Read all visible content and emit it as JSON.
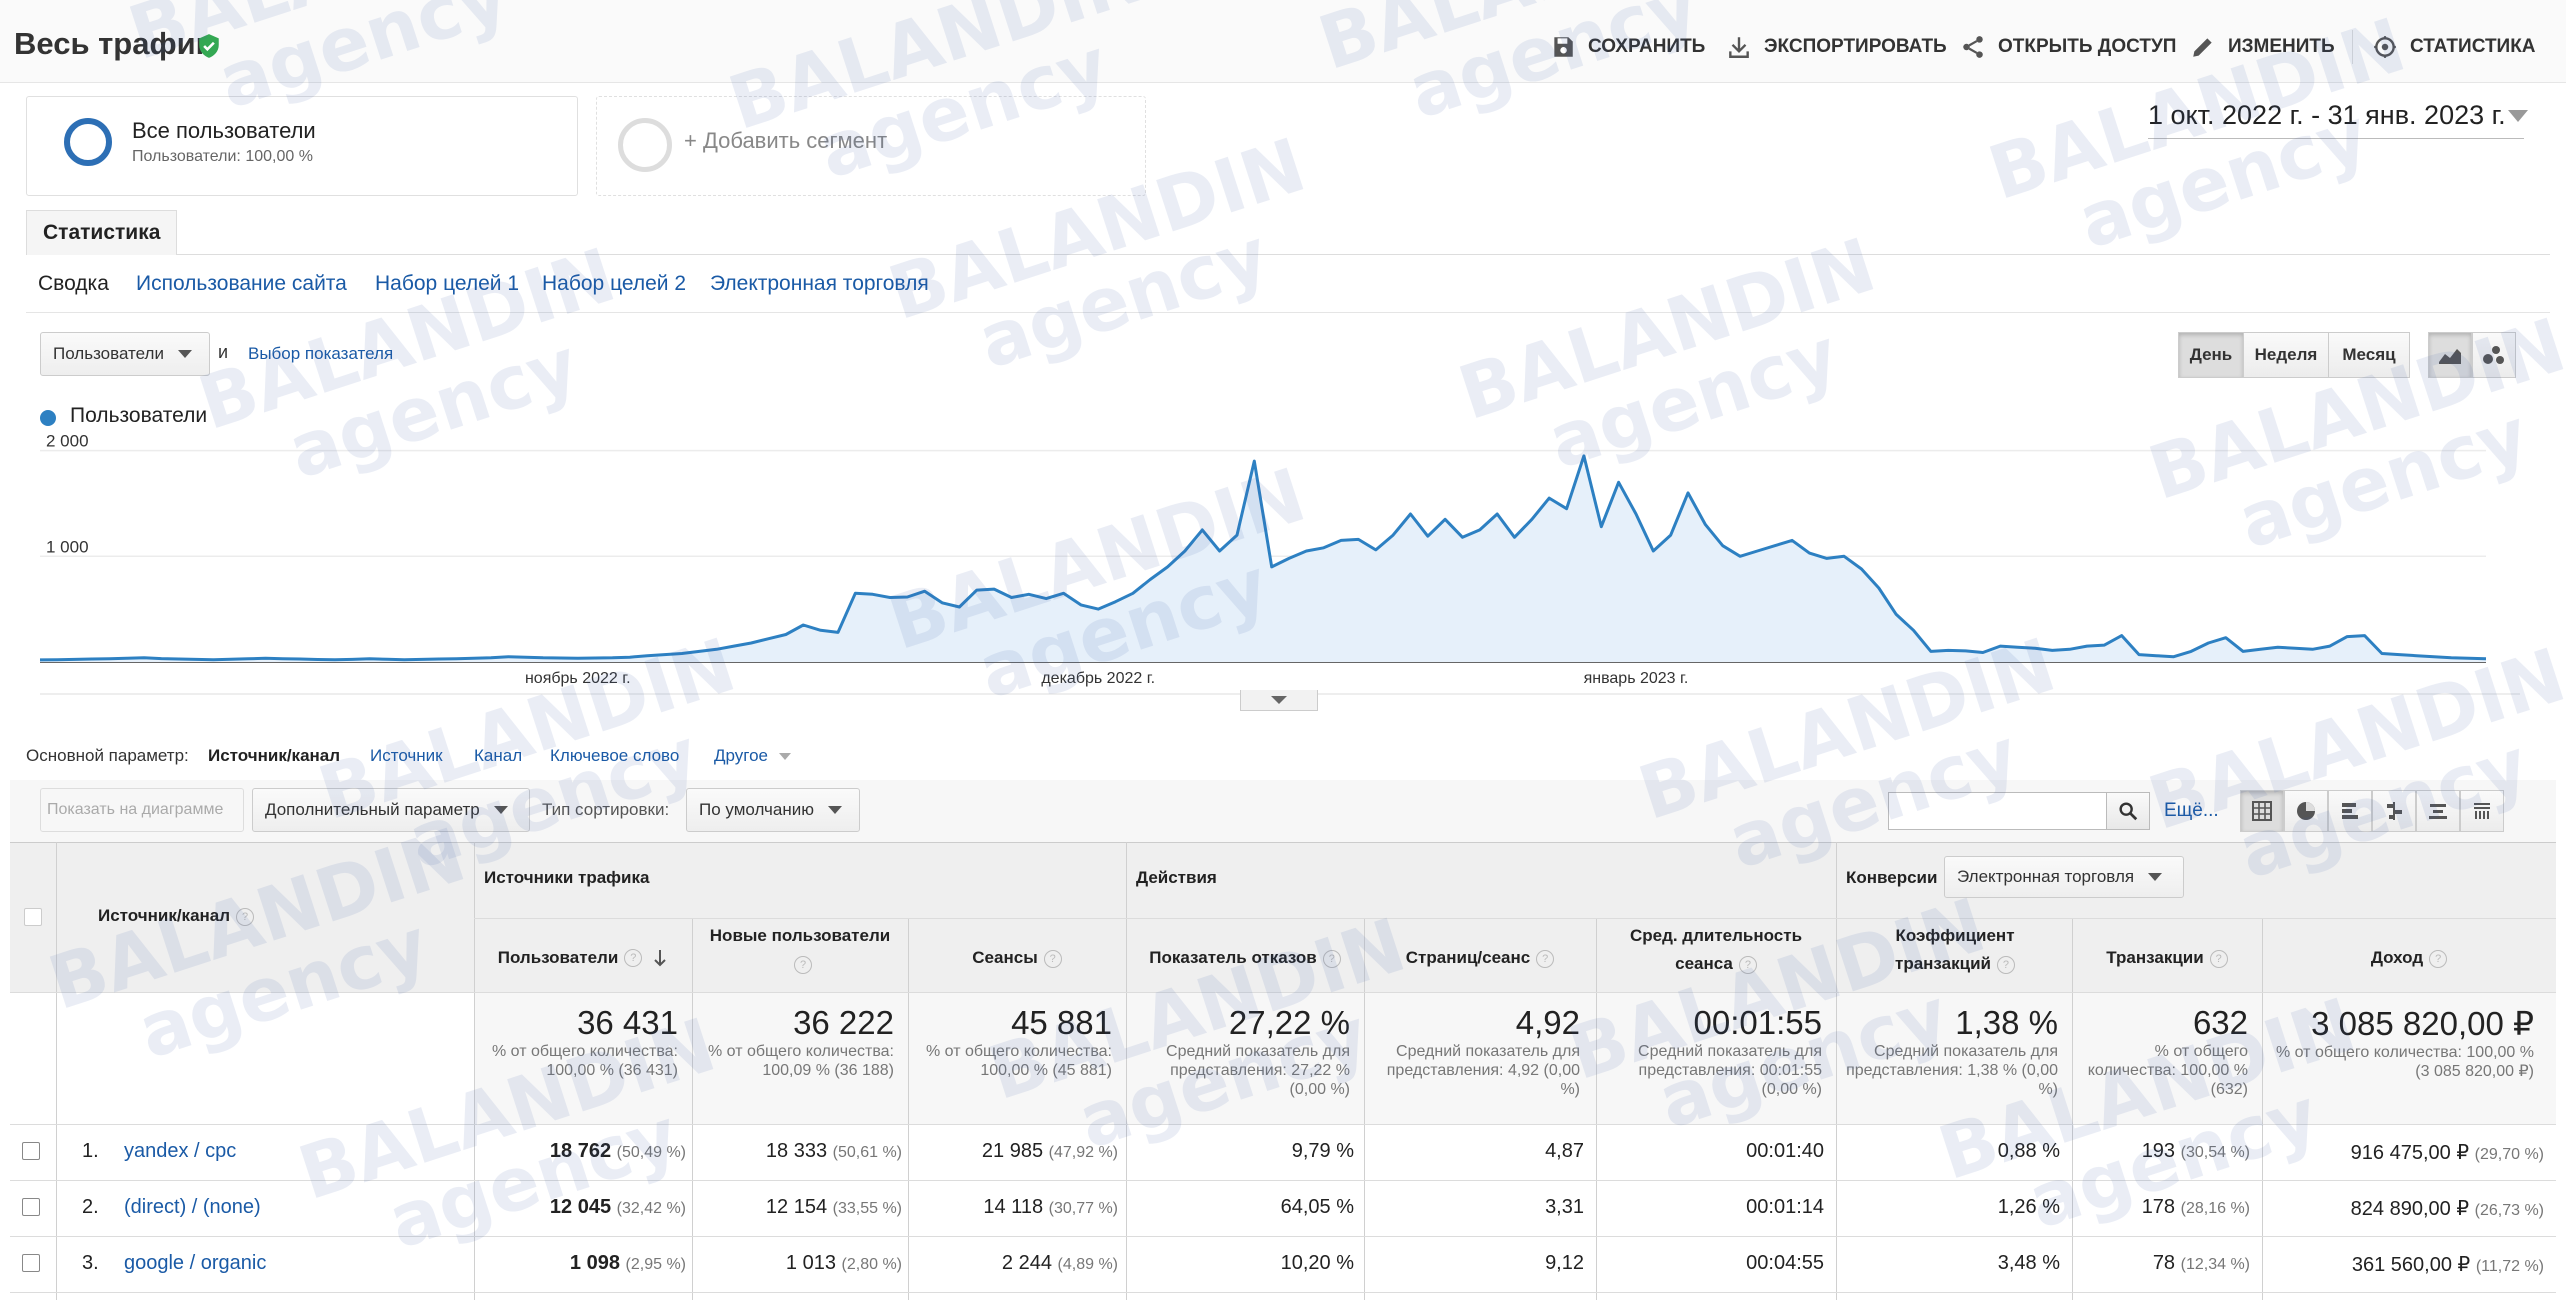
{
  "header": {
    "title": "Весь трафик",
    "actions": [
      "СОХРАНИТЬ",
      "ЭКСПОРТИРОВАТЬ",
      "ОТКРЫТЬ ДОСТУП",
      "ИЗМЕНИТЬ",
      "СТАТИСТИКА"
    ]
  },
  "segments": {
    "active_title": "Все пользователи",
    "active_sub": "Пользователи: 100,00 %",
    "add_label": "+ Добавить сегмент"
  },
  "date_range": "1 окт. 2022 г. - 31 янв. 2023 г.",
  "report_tab": "Статистика",
  "subtabs": [
    "Сводка",
    "Использование сайта",
    "Набор целей 1",
    "Набор целей 2",
    "Электронная торговля"
  ],
  "chart_controls": {
    "metric": "Пользователи",
    "and": "и",
    "pick_metric": "Выбор показателя",
    "periods": [
      "День",
      "Неделя",
      "Месяц"
    ],
    "active_period": "День"
  },
  "chart_data": {
    "type": "area",
    "series": [
      {
        "name": "Пользователи",
        "color": "#2d80c2",
        "values": [
          20,
          22,
          25,
          28,
          30,
          35,
          40,
          32,
          28,
          25,
          22,
          26,
          30,
          35,
          30,
          28,
          24,
          22,
          25,
          30,
          26,
          22,
          25,
          28,
          30,
          35,
          40,
          50,
          45,
          40,
          38,
          35,
          38,
          40,
          45,
          60,
          70,
          80,
          100,
          120,
          150,
          180,
          220,
          260,
          350,
          300,
          280,
          650,
          640,
          610,
          615,
          670,
          560,
          520,
          680,
          690,
          610,
          640,
          600,
          650,
          540,
          500,
          570,
          650,
          780,
          900,
          1050,
          1250,
          1050,
          1200,
          1900,
          900,
          980,
          1050,
          1080,
          1150,
          1160,
          1060,
          1200,
          1400,
          1190,
          1350,
          1180,
          1250,
          1400,
          1180,
          1350,
          1550,
          1450,
          1950,
          1280,
          1700,
          1400,
          1050,
          1200,
          1600,
          1300,
          1100,
          1000,
          1050,
          1100,
          1150,
          1030,
          980,
          1000,
          880,
          700,
          450,
          300,
          100,
          110,
          105,
          90,
          150,
          140,
          130,
          110,
          120,
          150,
          160,
          250,
          70,
          60,
          50,
          100,
          180,
          230,
          100,
          120,
          140,
          130,
          120,
          150,
          240,
          250,
          80,
          70,
          60,
          50,
          40,
          35,
          30
        ]
      }
    ],
    "x_tick_labels": [
      "ноябрь 2022 г.",
      "декабрь 2022 г.",
      "январь 2023 г."
    ],
    "y_tick_labels": [
      "2 000",
      "1 000"
    ],
    "ylim": [
      0,
      2100
    ],
    "grid": true,
    "legend": "top-left"
  },
  "primary_dimension": {
    "label": "Основной параметр:",
    "active": "Источник/канал",
    "options": [
      "Источник",
      "Канал",
      "Ключевое слово",
      "Другое"
    ]
  },
  "table_toolbar": {
    "plot_rows": "Показать на диаграмме",
    "secondary_dim": "Дополнительный параметр",
    "sort_label": "Тип сортировки:",
    "sort_value": "По умолчанию",
    "search_placeholder": "",
    "more": "Ещё..."
  },
  "table": {
    "dimension_header": "Источник/канал",
    "groups": {
      "acquisition": "Источники трафика",
      "behavior": "Действия",
      "conversions": "Конверсии",
      "conversion_select": "Электронная торговля"
    },
    "columns": [
      "Пользователи",
      "Новые пользователи",
      "Сеансы",
      "Показатель отказов",
      "Страниц/сеанс",
      "Сред. длительность сеанса",
      "Коэффициент транзакций",
      "Транзакции",
      "Доход"
    ],
    "totals": [
      {
        "value": "36 431",
        "sub": "% от общего количества: 100,00 % (36 431)"
      },
      {
        "value": "36 222",
        "sub": "% от общего количества: 100,09 % (36 188)"
      },
      {
        "value": "45 881",
        "sub": "% от общего количества: 100,00 % (45 881)"
      },
      {
        "value": "27,22 %",
        "sub": "Средний показатель для представления: 27,22 % (0,00 %)"
      },
      {
        "value": "4,92",
        "sub": "Средний показатель для представления: 4,92 (0,00 %)"
      },
      {
        "value": "00:01:55",
        "sub": "Средний показатель для представления: 00:01:55 (0,00 %)"
      },
      {
        "value": "1,38 %",
        "sub": "Средний показатель для представления: 1,38 % (0,00 %)"
      },
      {
        "value": "632",
        "sub": "% от общего количества: 100,00 % (632)"
      },
      {
        "value": "3 085 820,00 ₽",
        "sub": "% от общего количества: 100,00 % (3 085 820,00 ₽)"
      }
    ],
    "rows": [
      {
        "num": "1.",
        "source": "yandex / cpc",
        "users": "18 762",
        "users_pct": "(50,49 %)",
        "new_users": "18 333",
        "new_users_pct": "(50,61 %)",
        "sessions": "21 985",
        "sessions_pct": "(47,92 %)",
        "bounce": "9,79 %",
        "pages": "4,87",
        "duration": "00:01:40",
        "conv_rate": "0,88 %",
        "transactions": "193",
        "transactions_pct": "(30,54 %)",
        "revenue": "916 475,00 ₽",
        "revenue_pct": "(29,70 %)"
      },
      {
        "num": "2.",
        "source": "(direct) / (none)",
        "users": "12 045",
        "users_pct": "(32,42 %)",
        "new_users": "12 154",
        "new_users_pct": "(33,55 %)",
        "sessions": "14 118",
        "sessions_pct": "(30,77 %)",
        "bounce": "64,05 %",
        "pages": "3,31",
        "duration": "00:01:14",
        "conv_rate": "1,26 %",
        "transactions": "178",
        "transactions_pct": "(28,16 %)",
        "revenue": "824 890,00 ₽",
        "revenue_pct": "(26,73 %)"
      },
      {
        "num": "3.",
        "source": "google / organic",
        "users": "1 098",
        "users_pct": "(2,95 %)",
        "new_users": "1 013",
        "new_users_pct": "(2,80 %)",
        "sessions": "2 244",
        "sessions_pct": "(4,89 %)",
        "bounce": "10,20 %",
        "pages": "9,12",
        "duration": "00:04:55",
        "conv_rate": "3,48 %",
        "transactions": "78",
        "transactions_pct": "(12,34 %)",
        "revenue": "361 560,00 ₽",
        "revenue_pct": "(11,72 %)"
      }
    ]
  },
  "watermark": {
    "line1": "BALANDIN",
    "line2": "agency"
  },
  "colors": {
    "accent": "#2d80c2",
    "link": "#1a5aa6",
    "verified": "#34a853",
    "watermark": "#3a5ba8"
  }
}
